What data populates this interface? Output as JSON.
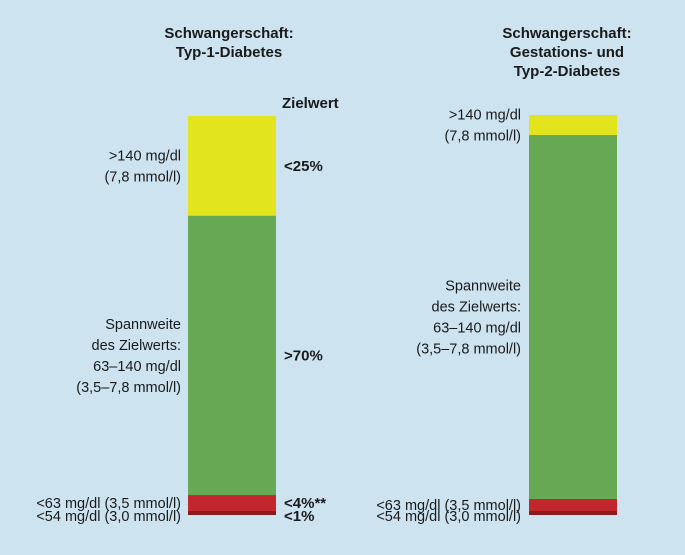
{
  "colors": {
    "background": "#cde3f0",
    "above_range": "#e2e41e",
    "in_range": "#67a855",
    "below_63": "#c1272d",
    "below_54": "#8c1a1a"
  },
  "chart_data": [
    {
      "type": "bar",
      "stacked": true,
      "title": [
        "Schwangerschaft:",
        "Typ-1-Diabetes"
      ],
      "target_header": "Zielwert",
      "segments": [
        {
          "key": "above_range",
          "value": 25,
          "target": "<25%",
          "label": [
            ">140 mg/dl",
            "(7,8 mmol/l)"
          ]
        },
        {
          "key": "in_range",
          "value": 70,
          "target": ">70%",
          "label": [
            "Spannweite",
            "des Zielwerts:",
            "63–140 mg/dl",
            "(3,5–7,8 mmol/l)"
          ]
        },
        {
          "key": "below_63",
          "value": 4,
          "target": "<4%**",
          "label": [
            "<63 mg/dl (3,5 mmol/l)"
          ]
        },
        {
          "key": "below_54",
          "value": 1,
          "target": "<1%",
          "label": [
            "<54 mg/dl (3,0 mmol/l)"
          ]
        }
      ]
    },
    {
      "type": "bar",
      "stacked": true,
      "title": [
        "Schwangerschaft:",
        "Gestations- und",
        "Typ-2-Diabetes"
      ],
      "segments": [
        {
          "key": "above_range",
          "value": 5,
          "label": [
            ">140 mg/dl",
            "(7,8 mmol/l)"
          ]
        },
        {
          "key": "in_range",
          "value": 91,
          "label": [
            "Spannweite",
            "des Zielwerts:",
            "63–140 mg/dl",
            "(3,5–7,8 mmol/l)"
          ]
        },
        {
          "key": "below_63",
          "value": 3,
          "label": [
            "<63 mg/dl (3,5 mmol/l)"
          ]
        },
        {
          "key": "below_54",
          "value": 1,
          "label": [
            "<54 mg/dl (3,0 mmol/l)"
          ]
        }
      ]
    }
  ]
}
